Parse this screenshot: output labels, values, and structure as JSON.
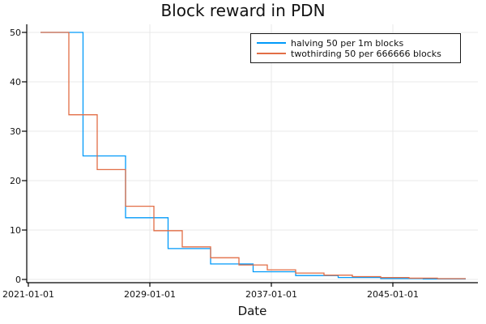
{
  "chart_data": {
    "type": "line",
    "subtype": "step",
    "title": "Block reward in PDN",
    "xlabel": "Date",
    "ylabel": "",
    "x_unit": "years since 2021-01-01",
    "xlim": [
      -0.1,
      29.6
    ],
    "ylim": [
      -0.6,
      51.6
    ],
    "grid": true,
    "legend_position": "top-right",
    "colors": {
      "series1": "#009AFA",
      "series2": "#E26E46",
      "grid": "#E8E8E8",
      "axis": "#000000",
      "text": "#111111",
      "background": "#FFFFFF"
    },
    "x_ticks": [
      {
        "t": 0,
        "label": "2021-01-01"
      },
      {
        "t": 8,
        "label": "2029-01-01"
      },
      {
        "t": 16,
        "label": "2037-01-01"
      },
      {
        "t": 24,
        "label": "2045-01-01"
      }
    ],
    "y_ticks": [
      {
        "v": 0,
        "label": "0"
      },
      {
        "v": 10,
        "label": "10"
      },
      {
        "v": 20,
        "label": "20"
      },
      {
        "v": 30,
        "label": "30"
      },
      {
        "v": 40,
        "label": "40"
      },
      {
        "v": 50,
        "label": "50"
      }
    ],
    "series": [
      {
        "name": "halving 50 per 1m blocks",
        "color": "#009AFA",
        "points": [
          [
            0.8,
            50
          ],
          [
            3.6,
            50
          ],
          [
            3.6,
            25
          ],
          [
            6.4,
            25
          ],
          [
            6.4,
            12.5
          ],
          [
            9.2,
            12.5
          ],
          [
            9.2,
            6.25
          ],
          [
            12,
            6.25
          ],
          [
            12,
            3.125
          ],
          [
            14.8,
            3.125
          ],
          [
            14.8,
            1.5625
          ],
          [
            17.6,
            1.5625
          ],
          [
            17.6,
            0.7813
          ],
          [
            20.4,
            0.7813
          ],
          [
            20.4,
            0.3906
          ],
          [
            23.2,
            0.3906
          ],
          [
            23.2,
            0.1953
          ],
          [
            26,
            0.1953
          ],
          [
            26,
            0.0977
          ],
          [
            28.8,
            0.0977
          ]
        ]
      },
      {
        "name": "twothirding 50 per 666666 blocks",
        "color": "#E26E46",
        "points": [
          [
            0.8,
            50
          ],
          [
            2.6667,
            50
          ],
          [
            2.6667,
            33.3333
          ],
          [
            4.5333,
            33.3333
          ],
          [
            4.5333,
            22.2222
          ],
          [
            6.4,
            22.2222
          ],
          [
            6.4,
            14.8148
          ],
          [
            8.2667,
            14.8148
          ],
          [
            8.2667,
            9.8765
          ],
          [
            10.1333,
            9.8765
          ],
          [
            10.1333,
            6.5844
          ],
          [
            12,
            6.5844
          ],
          [
            12,
            4.3896
          ],
          [
            13.8667,
            4.3896
          ],
          [
            13.8667,
            2.9264
          ],
          [
            15.7333,
            2.9264
          ],
          [
            15.7333,
            1.9509
          ],
          [
            17.6,
            1.9509
          ],
          [
            17.6,
            1.3006
          ],
          [
            19.4667,
            1.3006
          ],
          [
            19.4667,
            0.8671
          ],
          [
            21.3333,
            0.8671
          ],
          [
            21.3333,
            0.5781
          ],
          [
            23.2,
            0.5781
          ],
          [
            23.2,
            0.3854
          ],
          [
            25.0667,
            0.3854
          ],
          [
            25.0667,
            0.2569
          ],
          [
            26.9333,
            0.2569
          ],
          [
            26.9333,
            0.1713
          ],
          [
            28.8,
            0.1713
          ]
        ]
      }
    ]
  }
}
